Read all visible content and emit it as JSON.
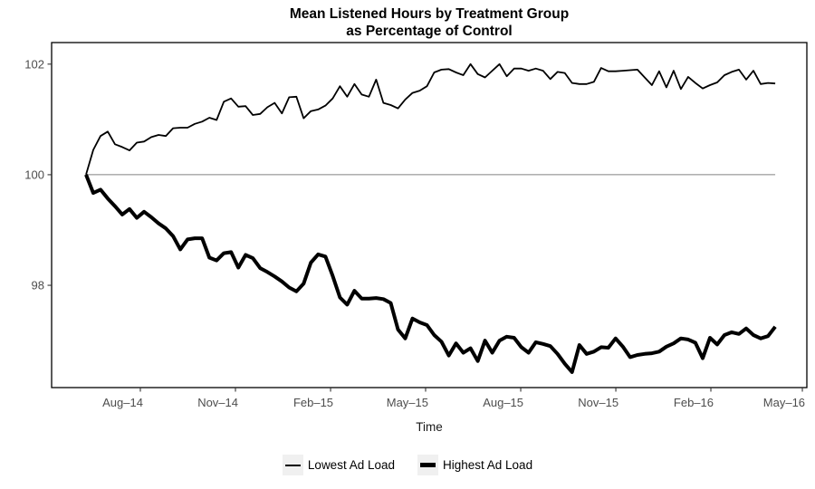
{
  "title": {
    "line1": "Mean Listened Hours by Treatment Group",
    "line2": "as Percentage of Control"
  },
  "chart_data": {
    "type": "line",
    "title": "Mean Listened Hours by Treatment Group\nas Percentage of Control",
    "xlabel": "Time",
    "ylabel": "",
    "grid": "off",
    "legend_position": "bottom",
    "panel_border_color": "#000000",
    "tick_color": "#333333",
    "tick_label_color": "#4d4d4d",
    "x_tick_labels": [
      "Aug–14",
      "Nov–14",
      "Feb–15",
      "May–15",
      "Aug–15",
      "Nov–15",
      "Feb–16",
      "May–16"
    ],
    "x_ticks_weeks": [
      7.49,
      20.6,
      33.71,
      46.81,
      59.92,
      73.03,
      86.13,
      98.74
    ],
    "xlim_weeks": [
      -4.74,
      99.36
    ],
    "y_ticks": [
      98,
      100,
      102
    ],
    "ylim": [
      96.15,
      102.39
    ],
    "x_unit": "weekly observations, index 0 to 95",
    "reference_line": {
      "label": "Control",
      "value": 100,
      "color": "#808080",
      "stroke_width": 1
    },
    "series": [
      {
        "name": "Lowest Ad Load",
        "color": "#000000",
        "stroke_width": 1.8,
        "values": [
          100.0,
          100.45,
          100.7,
          100.78,
          100.55,
          100.5,
          100.44,
          100.58,
          100.6,
          100.68,
          100.72,
          100.7,
          100.84,
          100.85,
          100.85,
          100.92,
          100.96,
          101.03,
          100.99,
          101.32,
          101.38,
          101.23,
          101.24,
          101.08,
          101.1,
          101.22,
          101.3,
          101.11,
          101.4,
          101.41,
          101.02,
          101.15,
          101.18,
          101.25,
          101.38,
          101.6,
          101.41,
          101.64,
          101.45,
          101.41,
          101.72,
          101.3,
          101.26,
          101.2,
          101.36,
          101.48,
          101.52,
          101.6,
          101.85,
          101.9,
          101.91,
          101.85,
          101.8,
          102.0,
          101.82,
          101.76,
          101.88,
          102.0,
          101.78,
          101.92,
          101.92,
          101.88,
          101.92,
          101.88,
          101.73,
          101.86,
          101.84,
          101.66,
          101.64,
          101.64,
          101.68,
          101.93,
          101.87,
          101.87,
          101.88,
          101.89,
          101.9,
          101.76,
          101.62,
          101.87,
          101.58,
          101.88,
          101.55,
          101.77,
          101.66,
          101.56,
          101.62,
          101.67,
          101.8,
          101.86,
          101.9,
          101.72,
          101.88,
          101.64,
          101.66,
          101.65
        ]
      },
      {
        "name": "Highest Ad Load",
        "color": "#000000",
        "stroke_width": 4,
        "values": [
          100.0,
          99.67,
          99.73,
          99.57,
          99.43,
          99.28,
          99.38,
          99.22,
          99.33,
          99.23,
          99.12,
          99.03,
          98.89,
          98.65,
          98.83,
          98.85,
          98.85,
          98.5,
          98.45,
          98.58,
          98.6,
          98.32,
          98.55,
          98.49,
          98.31,
          98.24,
          98.16,
          98.07,
          97.96,
          97.89,
          98.03,
          98.41,
          98.56,
          98.52,
          98.17,
          97.78,
          97.65,
          97.9,
          97.76,
          97.76,
          97.77,
          97.75,
          97.68,
          97.2,
          97.04,
          97.4,
          97.33,
          97.28,
          97.1,
          96.98,
          96.73,
          96.95,
          96.78,
          96.86,
          96.63,
          97.0,
          96.78,
          97.0,
          97.07,
          97.05,
          96.88,
          96.78,
          96.97,
          96.94,
          96.9,
          96.76,
          96.58,
          96.43,
          96.92,
          96.76,
          96.8,
          96.88,
          96.87,
          97.04,
          96.89,
          96.7,
          96.74,
          96.76,
          96.77,
          96.8,
          96.89,
          96.95,
          97.04,
          97.02,
          96.96,
          96.68,
          97.05,
          96.93,
          97.1,
          97.15,
          97.12,
          97.22,
          97.1,
          97.04,
          97.08,
          97.25
        ]
      }
    ]
  },
  "legend": {
    "items": [
      {
        "label": "Lowest Ad Load",
        "key": "thin-line"
      },
      {
        "label": "Highest Ad Load",
        "key": "thick-line"
      }
    ]
  }
}
